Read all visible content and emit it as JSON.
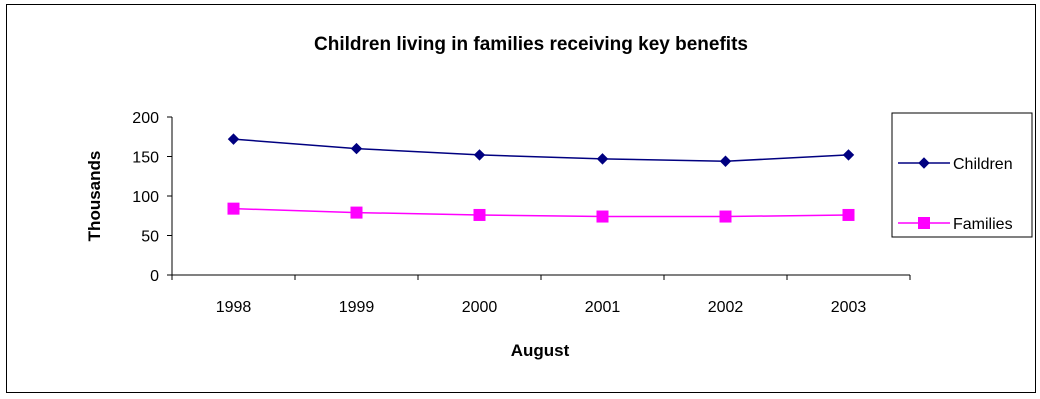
{
  "chart_data": {
    "type": "line",
    "title": "Children living in families receiving key benefits",
    "xlabel": "August",
    "ylabel": "Thousands",
    "categories": [
      "1998",
      "1999",
      "2000",
      "2001",
      "2002",
      "2003"
    ],
    "ylim": [
      0,
      200
    ],
    "yticks": [
      "0",
      "50",
      "100",
      "150",
      "200"
    ],
    "grid": false,
    "legend_position": "right",
    "series": [
      {
        "name": "Children",
        "values": [
          172,
          160,
          152,
          147,
          144,
          152
        ],
        "color": "#000080",
        "marker": "diamond"
      },
      {
        "name": "Families",
        "values": [
          84,
          79,
          76,
          74,
          74,
          76
        ],
        "color": "#FF00FF",
        "marker": "square"
      }
    ]
  }
}
